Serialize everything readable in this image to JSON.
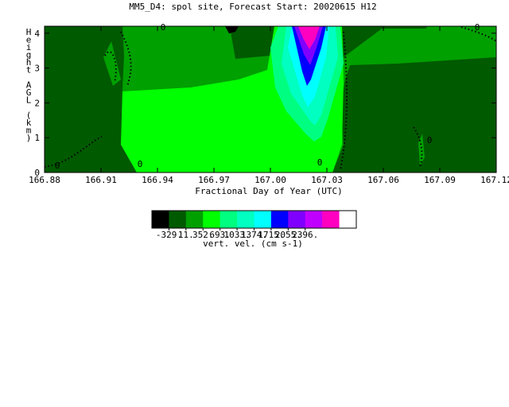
{
  "chart_data": {
    "type": "heatmap",
    "title": "MM5_D4: spol site,  Forecast Start: 20020615 H12",
    "xlabel": "Fractional Day of Year (UTC)",
    "ylabel": "Height AGL (km)",
    "xlim": [
      166.88,
      167.12
    ],
    "ylim": [
      0,
      4.2
    ],
    "x_ticks": [
      "166.88",
      "166.91",
      "166.94",
      "166.97",
      "167.00",
      "167.03",
      "167.06",
      "167.09",
      "167.12"
    ],
    "y_ticks": [
      "0",
      "1",
      "2",
      "3",
      "4"
    ],
    "contour_labels": [
      "0",
      "0",
      "0",
      "0",
      "0",
      "0"
    ],
    "colorbar": {
      "label": "vert. vel. (cm s-1)",
      "tick_labels": [
        "-329.",
        "11.",
        "352.",
        "693.",
        "1033.",
        "1374.",
        "1715.",
        "2055.",
        "2396."
      ],
      "levels": [
        -329,
        11,
        352,
        693,
        1033,
        1374,
        1715,
        2055,
        2396
      ],
      "colors": [
        "#000000",
        "#005a00",
        "#00a000",
        "#00ff00",
        "#00ff80",
        "#00ffc0",
        "#00ffff",
        "#0000ff",
        "#8000ff",
        "#c000ff",
        "#ff00c0",
        "#ffffff"
      ]
    },
    "fields": [
      {
        "name": "base-negative",
        "color": "#005a00"
      },
      {
        "name": "positive-0-352",
        "color": "#00a000"
      },
      {
        "name": "jet-352-693",
        "color": "#00ff00"
      },
      {
        "name": "jet-693-1033",
        "color": "#00ff80"
      },
      {
        "name": "jet-1033-1374",
        "color": "#00ffc0"
      },
      {
        "name": "jet-1374-1715",
        "color": "#00ffff"
      },
      {
        "name": "jet-1715-2055",
        "color": "#0000ff"
      },
      {
        "name": "jet-2055-2396",
        "color": "#8000ff"
      },
      {
        "name": "jet-max",
        "color": "#ff00c0"
      },
      {
        "name": "min-cell",
        "color": "#000000"
      }
    ]
  }
}
